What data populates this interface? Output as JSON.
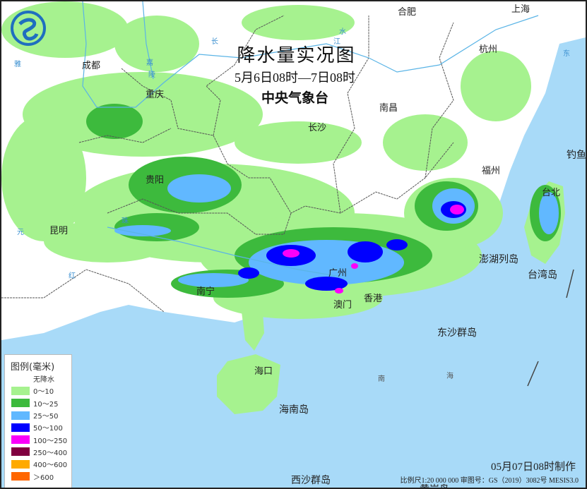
{
  "title": "降水量实况图",
  "period": "5月6日08时—7日08时",
  "issuer": "中央气象台",
  "made_time": "05月07日08时制作",
  "footer": "比例尺1:20 000 000   审图号：GS（2019）3082号 MESIS3.0",
  "legend": {
    "title": "图例(毫米)",
    "items": [
      {
        "label": "无降水",
        "color": "#ffffff"
      },
      {
        "label": "0～10",
        "color": "#a6f28f"
      },
      {
        "label": "10～25",
        "color": "#3dba3d"
      },
      {
        "label": "25～50",
        "color": "#61b8ff"
      },
      {
        "label": "50～100",
        "color": "#0000ff"
      },
      {
        "label": "100～250",
        "color": "#fa00fa"
      },
      {
        "label": "250～400",
        "color": "#800040"
      },
      {
        "label": "400～600",
        "color": "#ffaa00"
      },
      {
        "label": "＞600",
        "color": "#ff6600"
      }
    ]
  },
  "cities": [
    "合肥",
    "上海",
    "杭州",
    "成都",
    "重庆",
    "长沙",
    "南昌",
    "福州",
    "贵阳",
    "昆明",
    "南宁",
    "广州",
    "香港",
    "澳门",
    "台北",
    "海口"
  ],
  "places": [
    "台湾岛",
    "澎湖列岛",
    "东沙群岛",
    "海南岛",
    "西沙群岛",
    "钓鱼",
    "黄岩岛",
    "南",
    "海"
  ],
  "rivers": [
    "长",
    "江",
    "水",
    "嘉",
    "陵",
    "珠",
    "元",
    "红",
    "雅",
    "东"
  ],
  "colors": {
    "sea": "#a8daf8",
    "land": "#ffffff",
    "border": "#555555"
  }
}
